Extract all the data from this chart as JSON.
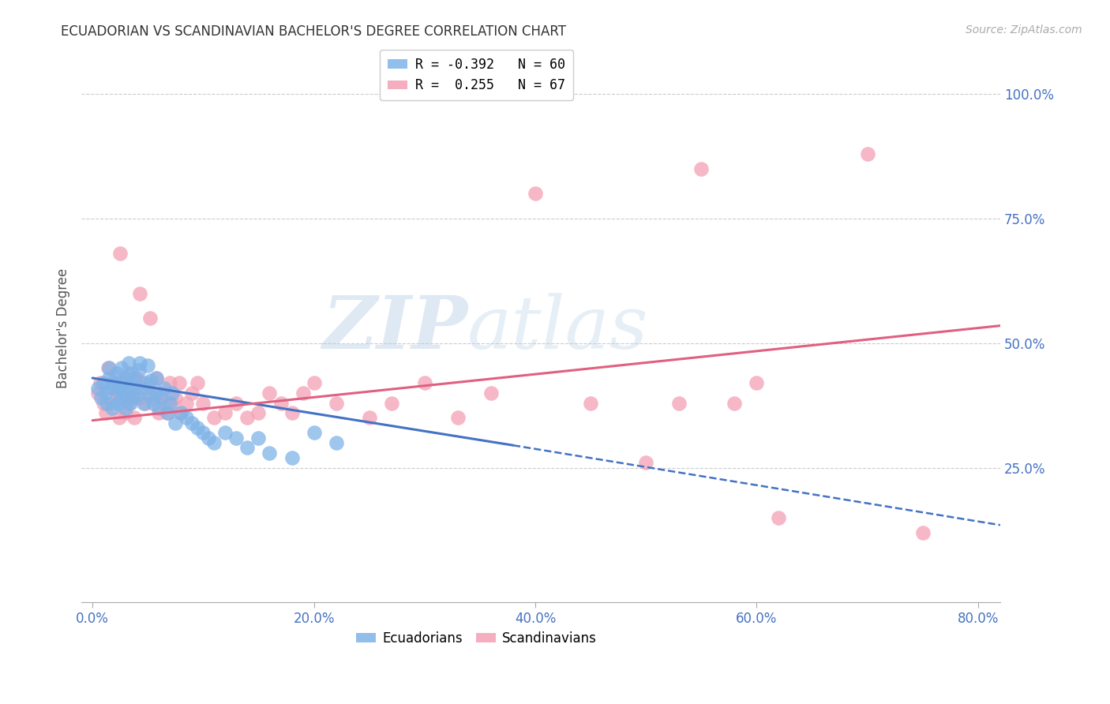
{
  "title": "ECUADORIAN VS SCANDINAVIAN BACHELOR'S DEGREE CORRELATION CHART",
  "source": "Source: ZipAtlas.com",
  "ylabel": "Bachelor's Degree",
  "x_tick_labels": [
    "0.0%",
    "20.0%",
    "40.0%",
    "60.0%",
    "80.0%"
  ],
  "x_tick_vals": [
    0.0,
    0.2,
    0.4,
    0.6,
    0.8
  ],
  "y_tick_labels": [
    "100.0%",
    "75.0%",
    "50.0%",
    "25.0%"
  ],
  "y_tick_vals": [
    1.0,
    0.75,
    0.5,
    0.25
  ],
  "xlim": [
    -0.01,
    0.82
  ],
  "ylim": [
    -0.02,
    1.08
  ],
  "legend_label1": "Ecuadorians",
  "legend_label2": "Scandinavians",
  "ecuadorian_color": "#7fb3e8",
  "scandinavian_color": "#f4a0b5",
  "trend_blue": "#4472c4",
  "trend_pink": "#e06080",
  "watermark": "ZIPAtlas",
  "background_color": "#ffffff",
  "grid_color": "#cccccc",
  "axis_label_color": "#4472c4",
  "title_color": "#333333",
  "blue_scatter": {
    "x": [
      0.005,
      0.008,
      0.01,
      0.012,
      0.013,
      0.015,
      0.015,
      0.018,
      0.018,
      0.02,
      0.022,
      0.023,
      0.024,
      0.025,
      0.026,
      0.027,
      0.028,
      0.03,
      0.03,
      0.032,
      0.033,
      0.034,
      0.035,
      0.036,
      0.037,
      0.038,
      0.04,
      0.042,
      0.043,
      0.045,
      0.046,
      0.048,
      0.05,
      0.052,
      0.053,
      0.055,
      0.057,
      0.058,
      0.06,
      0.062,
      0.065,
      0.068,
      0.07,
      0.072,
      0.075,
      0.08,
      0.085,
      0.09,
      0.095,
      0.1,
      0.105,
      0.11,
      0.12,
      0.13,
      0.14,
      0.15,
      0.16,
      0.18,
      0.2,
      0.22
    ],
    "y": [
      0.41,
      0.39,
      0.42,
      0.4,
      0.38,
      0.43,
      0.45,
      0.41,
      0.37,
      0.42,
      0.44,
      0.38,
      0.41,
      0.39,
      0.45,
      0.42,
      0.4,
      0.43,
      0.37,
      0.41,
      0.46,
      0.38,
      0.44,
      0.39,
      0.415,
      0.43,
      0.395,
      0.445,
      0.46,
      0.41,
      0.38,
      0.42,
      0.455,
      0.395,
      0.425,
      0.38,
      0.4,
      0.43,
      0.37,
      0.39,
      0.41,
      0.36,
      0.38,
      0.4,
      0.34,
      0.36,
      0.35,
      0.34,
      0.33,
      0.32,
      0.31,
      0.3,
      0.32,
      0.31,
      0.29,
      0.31,
      0.28,
      0.27,
      0.32,
      0.3
    ]
  },
  "pink_scatter": {
    "x": [
      0.005,
      0.007,
      0.01,
      0.012,
      0.014,
      0.016,
      0.018,
      0.02,
      0.022,
      0.024,
      0.025,
      0.027,
      0.028,
      0.03,
      0.032,
      0.033,
      0.035,
      0.036,
      0.038,
      0.04,
      0.042,
      0.043,
      0.045,
      0.048,
      0.05,
      0.052,
      0.055,
      0.058,
      0.06,
      0.062,
      0.065,
      0.068,
      0.07,
      0.072,
      0.075,
      0.078,
      0.08,
      0.085,
      0.09,
      0.095,
      0.1,
      0.11,
      0.12,
      0.13,
      0.14,
      0.15,
      0.16,
      0.17,
      0.18,
      0.19,
      0.2,
      0.22,
      0.25,
      0.27,
      0.3,
      0.33,
      0.36,
      0.4,
      0.45,
      0.5,
      0.53,
      0.55,
      0.58,
      0.6,
      0.62,
      0.7,
      0.75
    ],
    "y": [
      0.4,
      0.42,
      0.38,
      0.36,
      0.45,
      0.41,
      0.38,
      0.43,
      0.4,
      0.35,
      0.68,
      0.39,
      0.42,
      0.36,
      0.44,
      0.38,
      0.41,
      0.39,
      0.35,
      0.43,
      0.39,
      0.6,
      0.42,
      0.38,
      0.41,
      0.55,
      0.39,
      0.43,
      0.36,
      0.4,
      0.38,
      0.36,
      0.42,
      0.38,
      0.39,
      0.42,
      0.36,
      0.38,
      0.4,
      0.42,
      0.38,
      0.35,
      0.36,
      0.38,
      0.35,
      0.36,
      0.4,
      0.38,
      0.36,
      0.4,
      0.42,
      0.38,
      0.35,
      0.38,
      0.42,
      0.35,
      0.4,
      0.8,
      0.38,
      0.26,
      0.38,
      0.85,
      0.38,
      0.42,
      0.15,
      0.88,
      0.12
    ]
  },
  "blue_trend": {
    "x_start": 0.0,
    "y_start": 0.43,
    "x_end": 0.38,
    "y_end": 0.295
  },
  "blue_trend_dashed": {
    "x_start": 0.38,
    "y_start": 0.295,
    "x_end": 0.82,
    "y_end": 0.135
  },
  "pink_trend": {
    "x_start": 0.0,
    "y_start": 0.345,
    "x_end": 0.82,
    "y_end": 0.535
  }
}
